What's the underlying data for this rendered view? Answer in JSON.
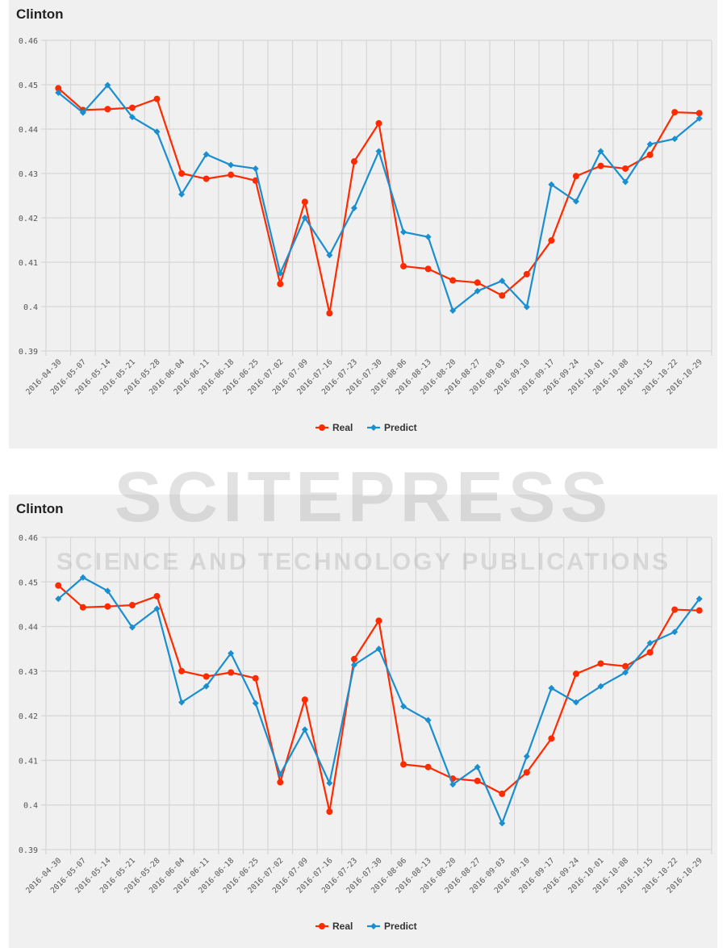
{
  "watermark": {
    "line1": "SCITEPRESS",
    "line2": "SCIENCE AND TECHNOLOGY PUBLICATIONS"
  },
  "chart_data": [
    {
      "type": "line",
      "title": "Clinton",
      "ylim": [
        0.39,
        0.46
      ],
      "yticks": [
        "0.39",
        "0.4",
        "0.41",
        "0.42",
        "0.43",
        "0.44",
        "0.45",
        "0.46"
      ],
      "grid": true,
      "legend_position": "bottom-center",
      "x": [
        "2016-04-30",
        "2016-05-07",
        "2016-05-14",
        "2016-05-21",
        "2016-05-28",
        "2016-06-04",
        "2016-06-11",
        "2016-06-18",
        "2016-06-25",
        "2016-07-02",
        "2016-07-09",
        "2016-07-16",
        "2016-07-23",
        "2016-07-30",
        "2016-08-06",
        "2016-08-13",
        "2016-08-20",
        "2016-08-27",
        "2016-09-03",
        "2016-09-10",
        "2016-09-17",
        "2016-09-24",
        "2016-10-01",
        "2016-10-08",
        "2016-10-15",
        "2016-10-22",
        "2016-10-29"
      ],
      "series": [
        {
          "name": "Real",
          "color": "#ff2a00",
          "marker": "circle",
          "values": [
            0.4492,
            0.4443,
            0.4445,
            0.4448,
            0.4468,
            0.43,
            0.4288,
            0.4297,
            0.4284,
            0.4051,
            0.4236,
            0.3985,
            0.4327,
            0.4413,
            0.4091,
            0.4085,
            0.4059,
            0.4054,
            0.4025,
            0.4073,
            0.4149,
            0.4294,
            0.4317,
            0.4311,
            0.4342,
            0.4438,
            0.4436
          ]
        },
        {
          "name": "Predict",
          "color": "#1a8fd0",
          "marker": "diamond",
          "values": [
            0.4482,
            0.4437,
            0.4499,
            0.4427,
            0.4394,
            0.4253,
            0.4343,
            0.4319,
            0.4311,
            0.4075,
            0.42,
            0.4116,
            0.4222,
            0.435,
            0.4168,
            0.4157,
            0.3991,
            0.4035,
            0.4058,
            0.3999,
            0.4275,
            0.4237,
            0.435,
            0.4281,
            0.4366,
            0.4378,
            0.4424
          ]
        }
      ]
    },
    {
      "type": "line",
      "title": "Clinton",
      "ylim": [
        0.39,
        0.46
      ],
      "yticks": [
        "0.39",
        "0.4",
        "0.41",
        "0.42",
        "0.43",
        "0.44",
        "0.45",
        "0.46"
      ],
      "grid": true,
      "legend_position": "bottom-center",
      "x": [
        "2016-04-30",
        "2016-05-07",
        "2016-05-14",
        "2016-05-21",
        "2016-05-28",
        "2016-06-04",
        "2016-06-11",
        "2016-06-18",
        "2016-06-25",
        "2016-07-02",
        "2016-07-09",
        "2016-07-16",
        "2016-07-23",
        "2016-07-30",
        "2016-08-06",
        "2016-08-13",
        "2016-08-20",
        "2016-08-27",
        "2016-09-03",
        "2016-09-10",
        "2016-09-17",
        "2016-09-24",
        "2016-10-01",
        "2016-10-08",
        "2016-10-15",
        "2016-10-22",
        "2016-10-29"
      ],
      "series": [
        {
          "name": "Real",
          "color": "#ff2a00",
          "marker": "circle",
          "values": [
            0.4492,
            0.4443,
            0.4445,
            0.4448,
            0.4468,
            0.43,
            0.4288,
            0.4297,
            0.4284,
            0.4051,
            0.4236,
            0.3985,
            0.4327,
            0.4413,
            0.4091,
            0.4085,
            0.4059,
            0.4054,
            0.4025,
            0.4073,
            0.4149,
            0.4294,
            0.4317,
            0.4311,
            0.4342,
            0.4438,
            0.4436
          ]
        },
        {
          "name": "Predict",
          "color": "#1a8fd0",
          "marker": "diamond",
          "values": [
            0.4462,
            0.451,
            0.448,
            0.4398,
            0.444,
            0.423,
            0.4266,
            0.434,
            0.4228,
            0.4069,
            0.4169,
            0.4049,
            0.4314,
            0.435,
            0.4221,
            0.419,
            0.4046,
            0.4085,
            0.3959,
            0.4109,
            0.4262,
            0.423,
            0.4266,
            0.4297,
            0.4363,
            0.4388,
            0.4462
          ]
        }
      ]
    }
  ]
}
